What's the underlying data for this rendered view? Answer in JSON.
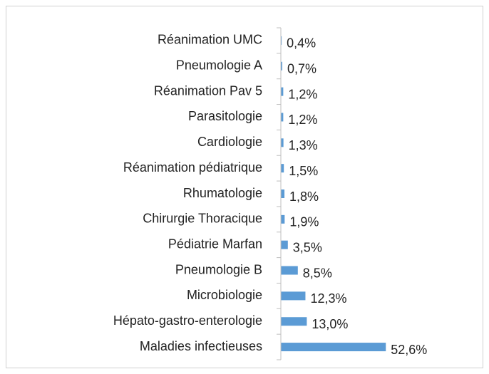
{
  "chart_data": {
    "type": "bar",
    "orientation": "horizontal",
    "color": "#5b9bd5",
    "categories": [
      "Réanimation UMC",
      "Pneumologie A",
      "Réanimation Pav 5",
      "Parasitologie",
      "Cardiologie",
      "Réanimation pédiatrique",
      "Rhumatologie",
      "Chirurgie Thoracique",
      "Pédiatrie Marfan",
      "Pneumologie B",
      "Microbiologie",
      "Hépato-gastro-enterologie",
      "Maladies infectieuses"
    ],
    "values": [
      0.4,
      0.7,
      1.2,
      1.2,
      1.3,
      1.5,
      1.8,
      1.9,
      3.5,
      8.5,
      12.3,
      13.0,
      52.6
    ],
    "value_labels": [
      "0,4%",
      "0,7%",
      "1,2%",
      "1,2%",
      "1,3%",
      "1,5%",
      "1,8%",
      "1,9%",
      "3,5%",
      "8,5%",
      "12,3%",
      "13,0%",
      "52,6%"
    ]
  }
}
